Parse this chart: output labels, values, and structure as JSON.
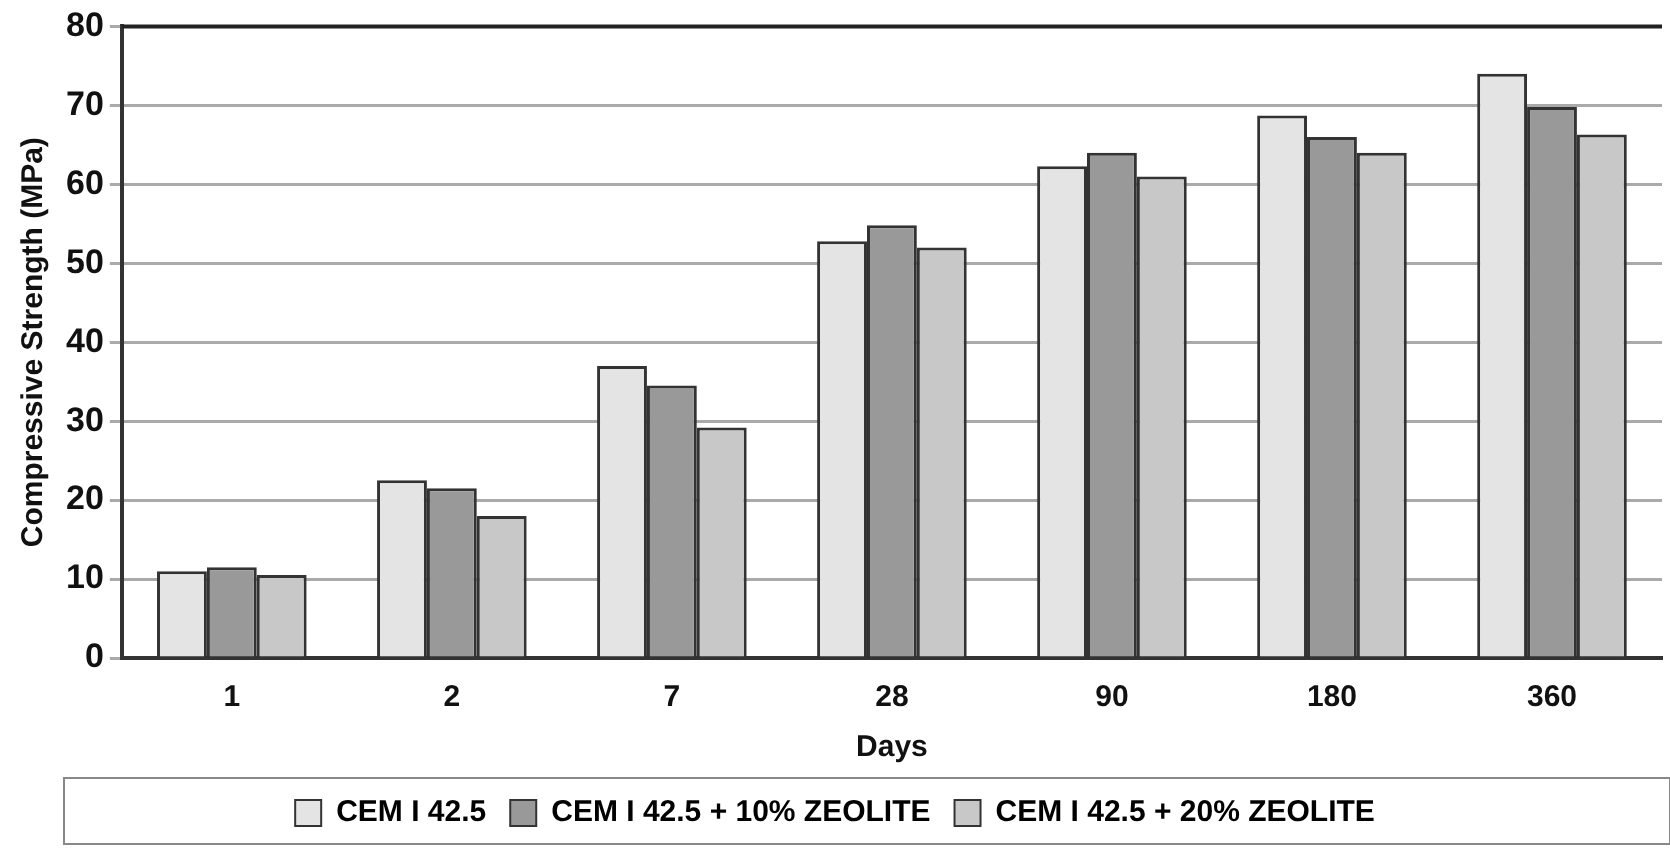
{
  "chart_data": {
    "type": "bar",
    "xlabel": "Days",
    "ylabel": "Compressive Strength (MPa)",
    "categories": [
      "1",
      "2",
      "7",
      "28",
      "90",
      "180",
      "360"
    ],
    "series": [
      {
        "name": "CEM I 42.5",
        "color": "#e4e4e4",
        "values": [
          11,
          22.5,
          37,
          52.8,
          62.3,
          68.7,
          74
        ]
      },
      {
        "name": "CEM I 42.5 + 10% ZEOLITE",
        "color": "#999999",
        "values": [
          11.5,
          21.5,
          34.5,
          54.8,
          64,
          66,
          69.8
        ]
      },
      {
        "name": "CEM I 42.5 + 20% ZEOLITE",
        "color": "#c8c8c8",
        "values": [
          10.5,
          18,
          29.2,
          52,
          61,
          64,
          66.3
        ]
      }
    ],
    "ylim": [
      0,
      80
    ],
    "yticks": [
      0,
      10,
      20,
      30,
      40,
      50,
      60,
      70,
      80
    ],
    "grid": "y",
    "legend": "bottom"
  }
}
